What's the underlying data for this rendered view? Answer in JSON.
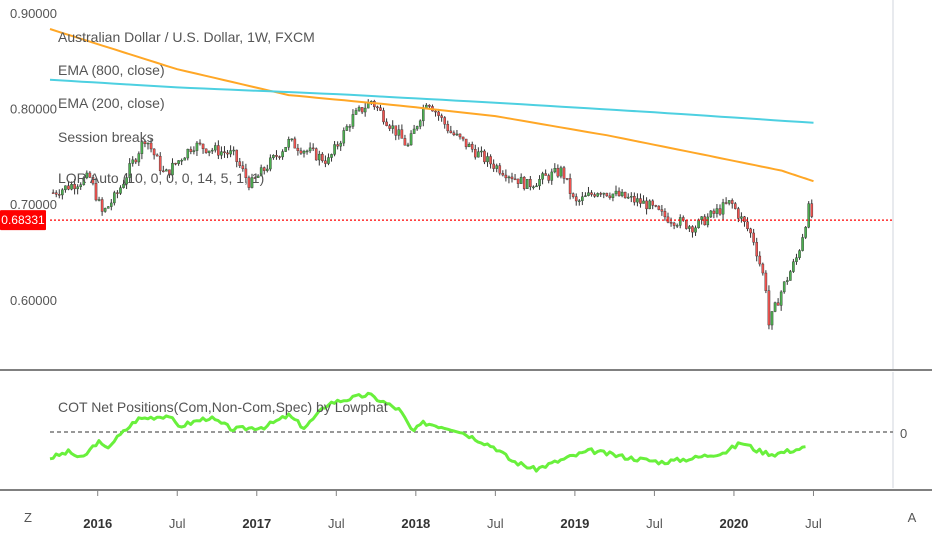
{
  "chart_data": [
    {
      "type": "candlestick",
      "title": "Australian Dollar / U.S. Dollar, 1W, FXCM",
      "legend_placement": "top-left",
      "legend": [
        "Australian Dollar / U.S. Dollar, 1W, FXCM",
        "EMA (800, close)",
        "EMA (200, close)",
        "Session breaks",
        "LOR Auto (10, 0, 0, 0, 14, 5, 1, 1)"
      ],
      "y_ticks": [
        "0.90000",
        "0.80000",
        "0.70000",
        "0.60000"
      ],
      "ylim": [
        0.535,
        0.905
      ],
      "last_price": "0.68331",
      "last_price_color": "#ff0000",
      "grid": false,
      "x_ticks": [
        "2016",
        "Jul",
        "2017",
        "Jul",
        "2018",
        "Jul",
        "2019",
        "Jul",
        "2020",
        "Jul"
      ],
      "x_tick_dates": [
        2016.0,
        2016.5,
        2017.0,
        2017.5,
        2018.0,
        2018.5,
        2019.0,
        2019.5,
        2020.0,
        2020.5
      ],
      "xlim": [
        2015.7,
        2021.0
      ],
      "colors": {
        "up": "#4caf50",
        "down": "#ef5350",
        "wick": "#333333",
        "ema800": "#ffa726",
        "ema200": "#4dd0e1"
      },
      "price_path": [
        {
          "t": 2015.72,
          "v": 0.712
        },
        {
          "t": 2015.95,
          "v": 0.728
        },
        {
          "t": 2016.03,
          "v": 0.69
        },
        {
          "t": 2016.12,
          "v": 0.71
        },
        {
          "t": 2016.3,
          "v": 0.77
        },
        {
          "t": 2016.42,
          "v": 0.73
        },
        {
          "t": 2016.6,
          "v": 0.762
        },
        {
          "t": 2016.85,
          "v": 0.752
        },
        {
          "t": 2016.96,
          "v": 0.72
        },
        {
          "t": 2017.2,
          "v": 0.765
        },
        {
          "t": 2017.45,
          "v": 0.745
        },
        {
          "t": 2017.6,
          "v": 0.79
        },
        {
          "t": 2017.72,
          "v": 0.808
        },
        {
          "t": 2017.95,
          "v": 0.76
        },
        {
          "t": 2018.07,
          "v": 0.81
        },
        {
          "t": 2018.22,
          "v": 0.775
        },
        {
          "t": 2018.45,
          "v": 0.745
        },
        {
          "t": 2018.7,
          "v": 0.72
        },
        {
          "t": 2018.92,
          "v": 0.735
        },
        {
          "t": 2019.0,
          "v": 0.7
        },
        {
          "t": 2019.15,
          "v": 0.715
        },
        {
          "t": 2019.45,
          "v": 0.7
        },
        {
          "t": 2019.55,
          "v": 0.688
        },
        {
          "t": 2019.75,
          "v": 0.676
        },
        {
          "t": 2019.98,
          "v": 0.702
        },
        {
          "t": 2020.12,
          "v": 0.665
        },
        {
          "t": 2020.2,
          "v": 0.615
        },
        {
          "t": 2020.22,
          "v": 0.574
        },
        {
          "t": 2020.3,
          "v": 0.61
        },
        {
          "t": 2020.4,
          "v": 0.646
        },
        {
          "t": 2020.47,
          "v": 0.695
        },
        {
          "t": 2020.5,
          "v": 0.683
        }
      ],
      "ema800": [
        {
          "t": 2015.7,
          "v": 0.883
        },
        {
          "t": 2016.5,
          "v": 0.841
        },
        {
          "t": 2017.2,
          "v": 0.814
        },
        {
          "t": 2017.9,
          "v": 0.803
        },
        {
          "t": 2018.5,
          "v": 0.792
        },
        {
          "t": 2019.2,
          "v": 0.772
        },
        {
          "t": 2019.8,
          "v": 0.752
        },
        {
          "t": 2020.3,
          "v": 0.735
        },
        {
          "t": 2020.5,
          "v": 0.724
        }
      ],
      "ema200": [
        {
          "t": 2015.7,
          "v": 0.83
        },
        {
          "t": 2016.5,
          "v": 0.822
        },
        {
          "t": 2017.5,
          "v": 0.815
        },
        {
          "t": 2018.5,
          "v": 0.806
        },
        {
          "t": 2019.5,
          "v": 0.796
        },
        {
          "t": 2020.5,
          "v": 0.785
        }
      ]
    },
    {
      "type": "line",
      "title": "COT Net Positions(Com,Non-Com,Spec) by Lowphat",
      "y_ticks": [
        "0"
      ],
      "zero_line": "dashed",
      "color": "#69f03c",
      "ylim": [
        -1.0,
        1.0
      ],
      "series": [
        {
          "values": [
            {
              "t": 2015.7,
              "v": -0.5
            },
            {
              "t": 2015.82,
              "v": -0.38
            },
            {
              "t": 2015.9,
              "v": -0.52
            },
            {
              "t": 2016.0,
              "v": -0.18
            },
            {
              "t": 2016.05,
              "v": -0.32
            },
            {
              "t": 2016.25,
              "v": 0.25
            },
            {
              "t": 2016.45,
              "v": 0.32
            },
            {
              "t": 2016.5,
              "v": 0.1
            },
            {
              "t": 2016.7,
              "v": 0.28
            },
            {
              "t": 2016.85,
              "v": 0.05
            },
            {
              "t": 2017.05,
              "v": 0.1
            },
            {
              "t": 2017.2,
              "v": 0.32
            },
            {
              "t": 2017.3,
              "v": 0.08
            },
            {
              "t": 2017.45,
              "v": 0.55
            },
            {
              "t": 2017.7,
              "v": 0.72
            },
            {
              "t": 2017.9,
              "v": 0.42
            },
            {
              "t": 2017.98,
              "v": 0.0
            },
            {
              "t": 2018.05,
              "v": 0.18
            },
            {
              "t": 2018.25,
              "v": 0.05
            },
            {
              "t": 2018.5,
              "v": -0.3
            },
            {
              "t": 2018.6,
              "v": -0.55
            },
            {
              "t": 2018.75,
              "v": -0.72
            },
            {
              "t": 2018.95,
              "v": -0.5
            },
            {
              "t": 2019.1,
              "v": -0.36
            },
            {
              "t": 2019.35,
              "v": -0.5
            },
            {
              "t": 2019.55,
              "v": -0.58
            },
            {
              "t": 2019.75,
              "v": -0.5
            },
            {
              "t": 2019.95,
              "v": -0.38
            },
            {
              "t": 2020.05,
              "v": -0.2
            },
            {
              "t": 2020.15,
              "v": -0.36
            },
            {
              "t": 2020.25,
              "v": -0.43
            },
            {
              "t": 2020.35,
              "v": -0.36
            },
            {
              "t": 2020.45,
              "v": -0.3
            }
          ]
        }
      ]
    }
  ],
  "corner_labels": {
    "left": "Z",
    "right": "A"
  }
}
